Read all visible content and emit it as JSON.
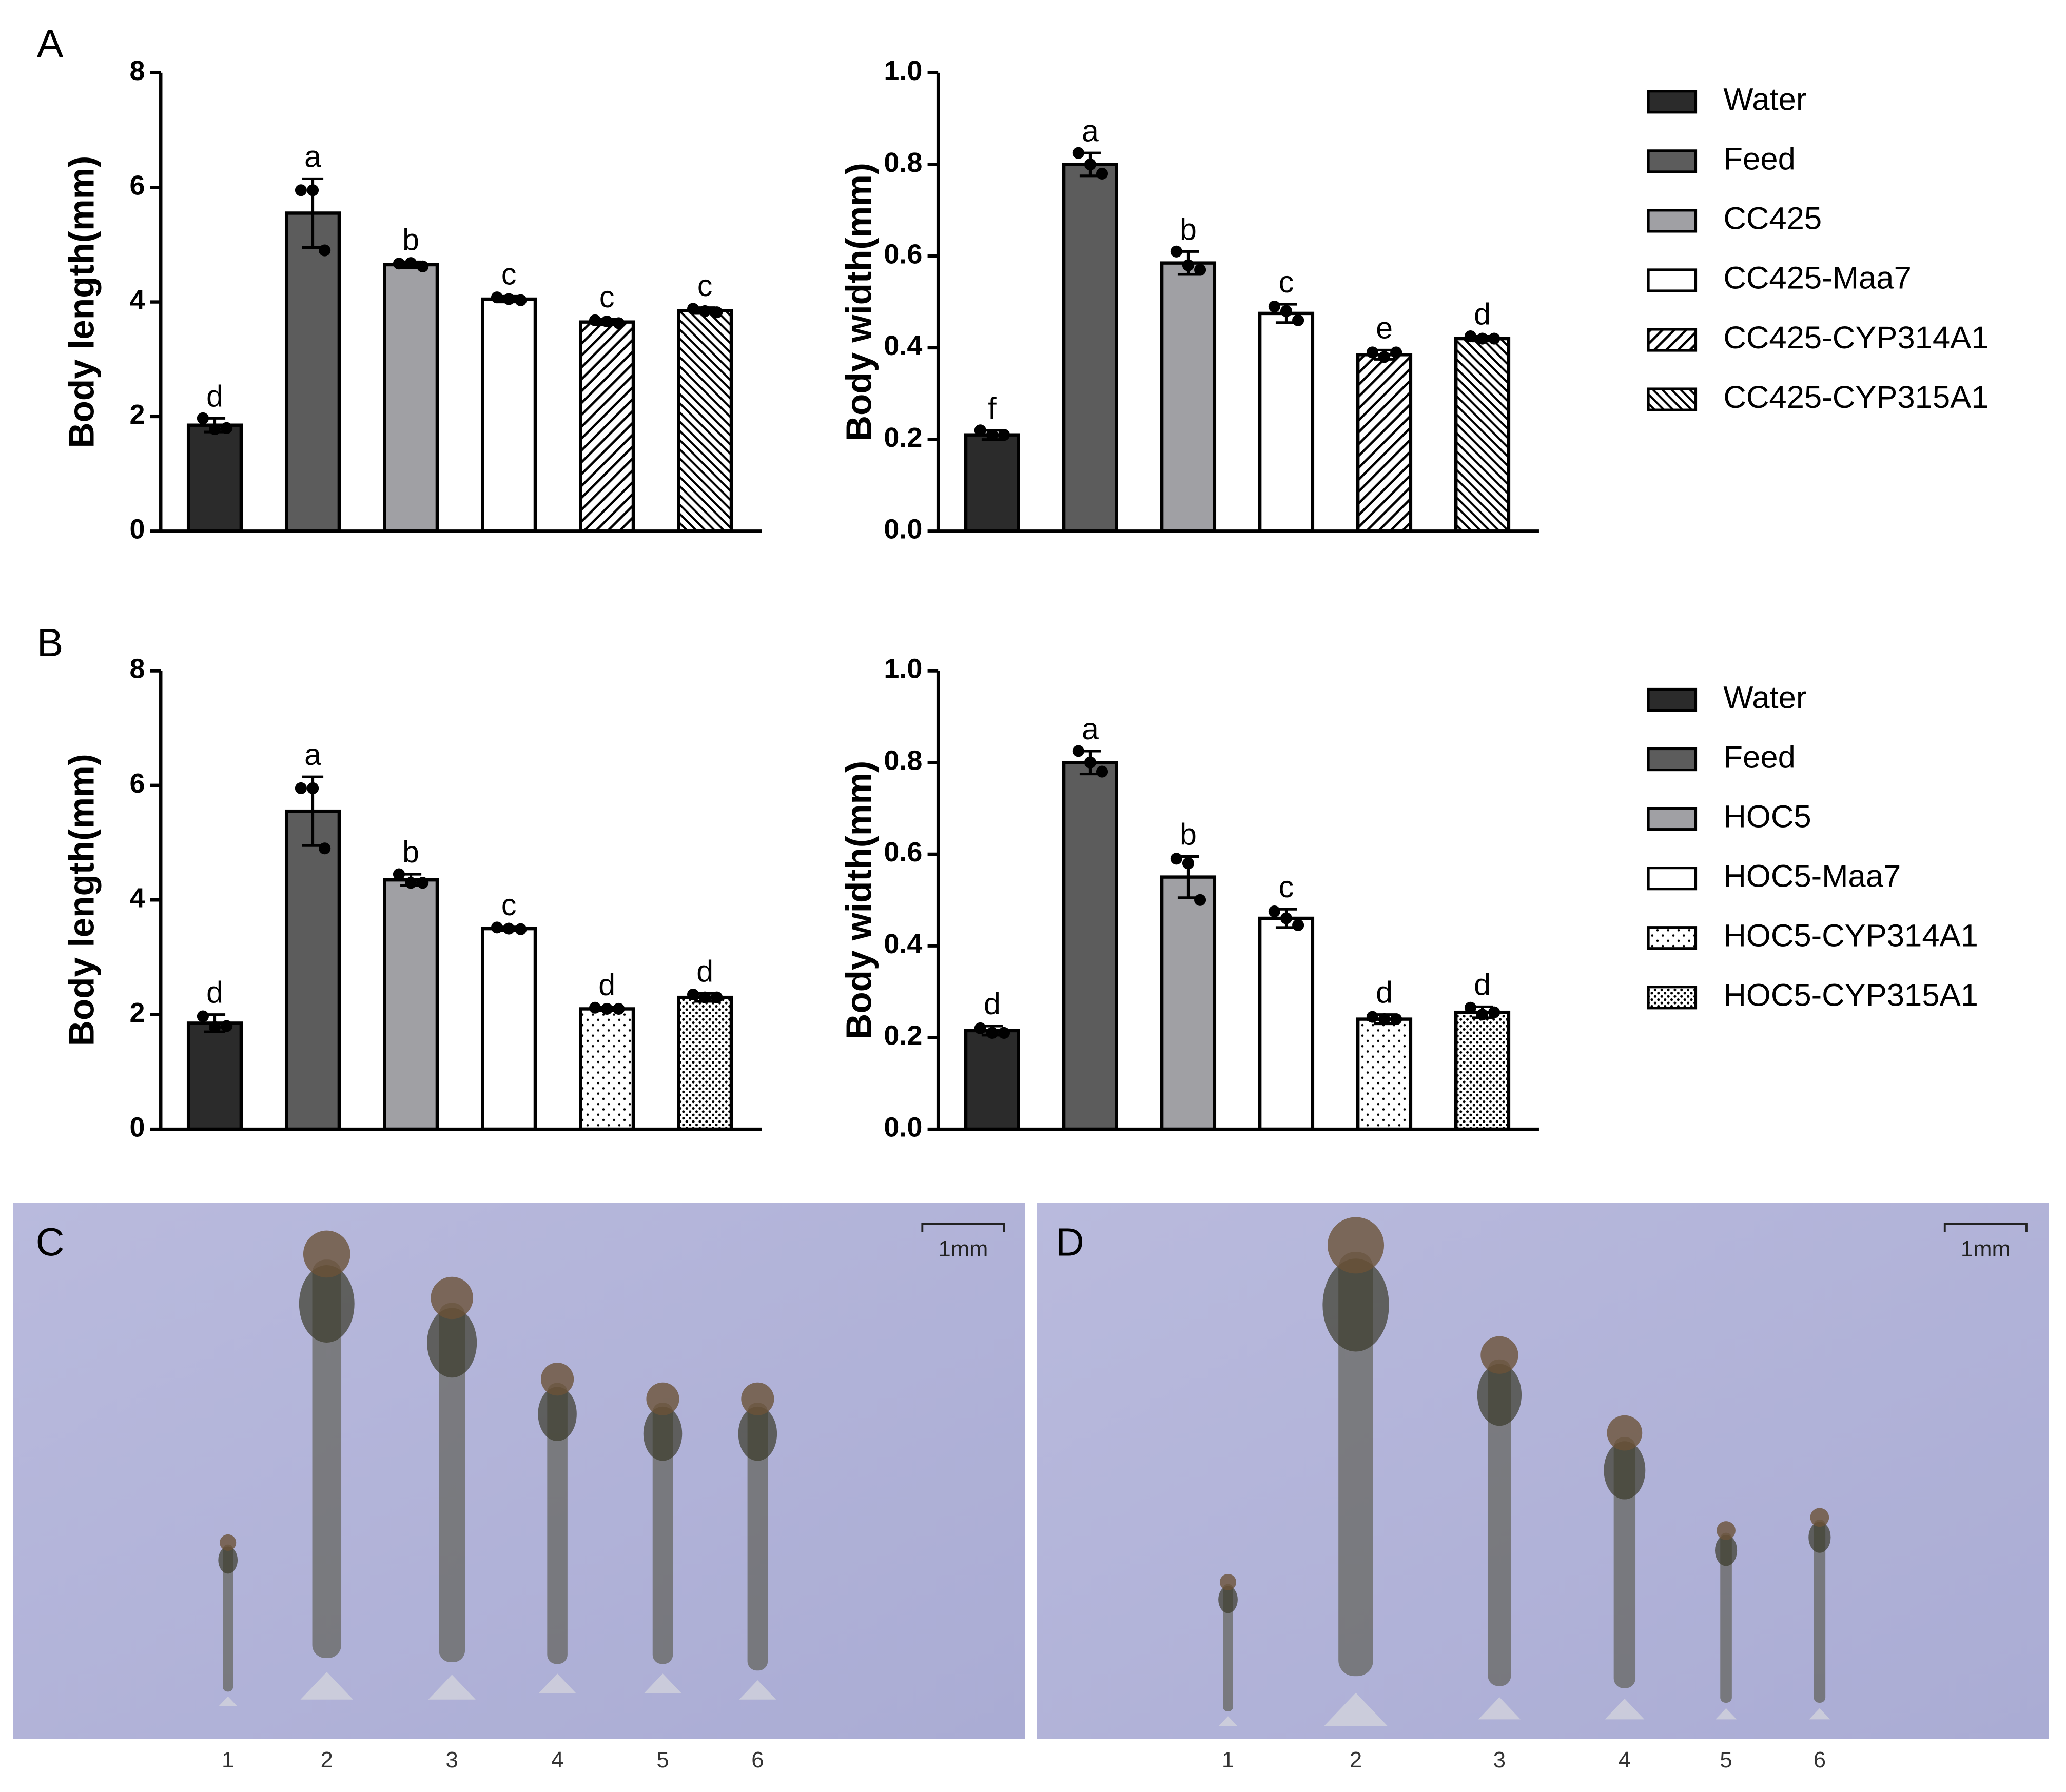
{
  "panel_labels": [
    "A",
    "B",
    "C",
    "D"
  ],
  "photos": [
    {
      "scale_bar": "1mm",
      "specimens": [
        "1",
        "2",
        "3",
        "4",
        "5",
        "6"
      ]
    },
    {
      "scale_bar": "1mm",
      "specimens": [
        "1",
        "2",
        "3",
        "4",
        "5",
        "6"
      ]
    }
  ],
  "chart_data": [
    {
      "type": "bar",
      "ylabel": "Body length(mm)",
      "values": [
        1.85,
        5.55,
        4.65,
        4.05,
        3.65,
        3.85
      ],
      "errors": [
        0.12,
        0.6,
        0.05,
        0.05,
        0.05,
        0.05
      ],
      "points": [
        [
          1.97,
          1.78,
          1.8
        ],
        [
          5.95,
          5.95,
          4.9
        ],
        [
          4.67,
          4.68,
          4.62
        ],
        [
          4.08,
          4.05,
          4.03
        ],
        [
          3.68,
          3.66,
          3.63
        ],
        [
          3.88,
          3.84,
          3.82
        ]
      ],
      "letters": [
        "d",
        "a",
        "b",
        "c",
        "c",
        "c"
      ],
      "colors": [
        "#2b2b2b",
        "#5c5c5c",
        "#a0a0a4",
        "#ffffff",
        "#ffffff",
        "#ffffff"
      ],
      "patterns": [
        "solid",
        "solid",
        "solid",
        "solid",
        "hatch-forward",
        "hatch-back"
      ],
      "ylim": [
        0,
        8
      ],
      "yticks": [
        0,
        2,
        4,
        6,
        8
      ]
    },
    {
      "type": "bar",
      "ylabel": "Body width(mm)",
      "categories": [
        "Water",
        "Feed",
        "CC425",
        "CC425-Maa7",
        "CC425-CYP314A1",
        "CC425-CYP315A1"
      ],
      "values": [
        0.21,
        0.8,
        0.585,
        0.475,
        0.385,
        0.42
      ],
      "errors": [
        0.01,
        0.025,
        0.025,
        0.02,
        0.01,
        0.005
      ],
      "points": [
        [
          0.22,
          0.21,
          0.21
        ],
        [
          0.825,
          0.8,
          0.78
        ],
        [
          0.61,
          0.58,
          0.57
        ],
        [
          0.49,
          0.48,
          0.46
        ],
        [
          0.39,
          0.38,
          0.39
        ],
        [
          0.425,
          0.42,
          0.42
        ]
      ],
      "letters": [
        "f",
        "a",
        "b",
        "c",
        "e",
        "d"
      ],
      "colors": [
        "#2b2b2b",
        "#5c5c5c",
        "#a0a0a4",
        "#ffffff",
        "#ffffff",
        "#ffffff"
      ],
      "patterns": [
        "solid",
        "solid",
        "solid",
        "solid",
        "hatch-forward",
        "hatch-back"
      ],
      "ylim": [
        0,
        1.0
      ],
      "yticks": [
        {
          "value": 0,
          "label": "0.0"
        },
        0.2,
        0.4,
        0.6,
        0.8,
        {
          "value": 1,
          "label": "1.0"
        }
      ],
      "legend": "right"
    },
    {
      "type": "bar",
      "ylabel": "Body length(mm)",
      "values": [
        1.85,
        5.55,
        4.35,
        3.5,
        2.1,
        2.3
      ],
      "errors": [
        0.15,
        0.6,
        0.1,
        0.03,
        0.03,
        0.07
      ],
      "points": [
        [
          1.97,
          1.78,
          1.8
        ],
        [
          5.95,
          5.95,
          4.9
        ],
        [
          4.45,
          4.3,
          4.3
        ],
        [
          3.52,
          3.5,
          3.49
        ],
        [
          2.12,
          2.1,
          2.1
        ],
        [
          2.35,
          2.3,
          2.3
        ]
      ],
      "letters": [
        "d",
        "a",
        "b",
        "c",
        "d",
        "d"
      ],
      "colors": [
        "#2b2b2b",
        "#5c5c5c",
        "#a0a0a4",
        "#ffffff",
        "#ffffff",
        "#ffffff"
      ],
      "patterns": [
        "solid",
        "solid",
        "solid",
        "solid",
        "dots-sparse",
        "dots-dense"
      ],
      "ylim": [
        0,
        8
      ],
      "yticks": [
        0,
        2,
        4,
        6,
        8
      ]
    },
    {
      "type": "bar",
      "ylabel": "Body width(mm)",
      "categories": [
        "Water",
        "Feed",
        "HOC5",
        "HOC5-Maa7",
        "HOC5-CYP314A1",
        "HOC5-CYP315A1"
      ],
      "values": [
        0.215,
        0.8,
        0.55,
        0.46,
        0.24,
        0.255
      ],
      "errors": [
        0.01,
        0.025,
        0.045,
        0.02,
        0.01,
        0.012
      ],
      "points": [
        [
          0.22,
          0.21,
          0.21
        ],
        [
          0.825,
          0.8,
          0.78
        ],
        [
          0.59,
          0.58,
          0.5
        ],
        [
          0.475,
          0.46,
          0.445
        ],
        [
          0.245,
          0.24,
          0.24
        ],
        [
          0.265,
          0.25,
          0.255
        ]
      ],
      "letters": [
        "d",
        "a",
        "b",
        "c",
        "d",
        "d"
      ],
      "colors": [
        "#2b2b2b",
        "#5c5c5c",
        "#a0a0a4",
        "#ffffff",
        "#ffffff",
        "#ffffff"
      ],
      "patterns": [
        "solid",
        "solid",
        "solid",
        "solid",
        "dots-sparse",
        "dots-dense"
      ],
      "ylim": [
        0,
        1.0
      ],
      "yticks": [
        {
          "value": 0,
          "label": "0.0"
        },
        0.2,
        0.4,
        0.6,
        0.8,
        {
          "value": 1,
          "label": "1.0"
        }
      ],
      "legend": "right"
    }
  ]
}
